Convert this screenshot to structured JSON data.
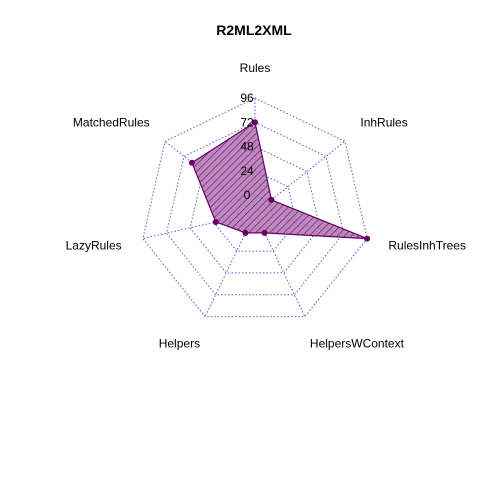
{
  "chart_data": {
    "type": "radar",
    "title": "R2ML2XML",
    "axes": [
      "Rules",
      "InhRules",
      "RulesInhTrees",
      "HelpersWContext",
      "Helpers",
      "LazyRules",
      "MatchedRules"
    ],
    "ticks": [
      0,
      24,
      48,
      72,
      96
    ],
    "rlim": [
      0,
      96
    ],
    "series": [
      {
        "values": [
          72,
          3,
          96,
          4,
          4,
          22,
          62
        ]
      }
    ],
    "colors": {
      "series": "#660066",
      "fill": "#9b3d9b",
      "grid": "#5a5ad2"
    },
    "grid": true
  }
}
